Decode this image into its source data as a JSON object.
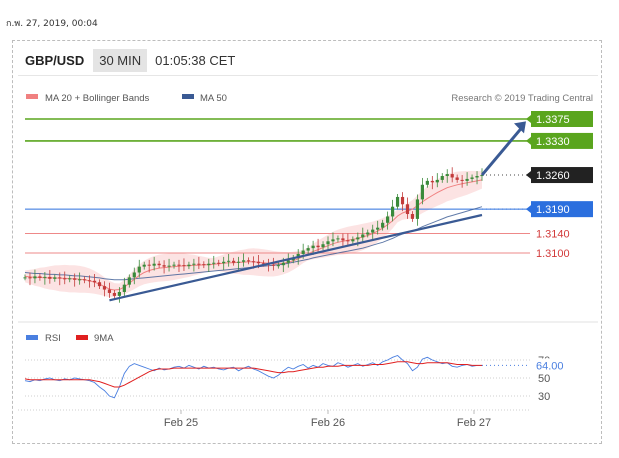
{
  "timestamp": "ก.พ. 27, 2019, 00:04",
  "header": {
    "symbol": "GBP/USD",
    "timeframe": "30 MIN",
    "clock": "01:05:38 CET"
  },
  "colors": {
    "ma20": "#f08080",
    "ma50": "#3a5a94",
    "green": "#5aa51e",
    "blue": "#2b6fde",
    "current": "#222222",
    "red": "#e06060",
    "rsi": "#4a7fe0",
    "ma9": "#e02020"
  },
  "chart_data": {
    "type": "candlestick",
    "legend": [
      {
        "name": "MA 20 + Bollinger Bands",
        "color": "#f08080"
      },
      {
        "name": "MA 50",
        "color": "#3a5a94"
      }
    ],
    "credit": "Research © 2019 Trading Central",
    "x_ticks": [
      "Feb 25",
      "Feb 26",
      "Feb 27"
    ],
    "levels": [
      {
        "value": 1.3375,
        "label": "1.3375",
        "kind": "resistance"
      },
      {
        "value": 1.333,
        "label": "1.3330",
        "kind": "resistance"
      },
      {
        "value": 1.326,
        "label": "1.3260",
        "kind": "current"
      },
      {
        "value": 1.319,
        "label": "1.3190",
        "kind": "pivot"
      },
      {
        "value": 1.314,
        "label": "1.3140",
        "kind": "support"
      },
      {
        "value": 1.31,
        "label": "1.3100",
        "kind": "support"
      }
    ],
    "closes": [
      1.305,
      1.3048,
      1.3052,
      1.3049,
      1.3051,
      1.3047,
      1.305,
      1.3048,
      1.3046,
      1.3048,
      1.3045,
      1.3046,
      1.3044,
      1.3043,
      1.304,
      1.3032,
      1.3025,
      1.3018,
      1.3012,
      1.302,
      1.3035,
      1.305,
      1.306,
      1.3072,
      1.3076,
      1.3074,
      1.3078,
      1.3075,
      1.3072,
      1.3074,
      1.3076,
      1.3075,
      1.3073,
      1.3076,
      1.3078,
      1.3077,
      1.3075,
      1.3078,
      1.308,
      1.3079,
      1.3082,
      1.3084,
      1.308,
      1.3082,
      1.3085,
      1.3083,
      1.3082,
      1.3079,
      1.3078,
      1.3076,
      1.3074,
      1.3075,
      1.308,
      1.3085,
      1.309,
      1.3098,
      1.3105,
      1.311,
      1.3115,
      1.3112,
      1.3118,
      1.3124,
      1.3128,
      1.313,
      1.3126,
      1.3124,
      1.3128,
      1.3132,
      1.3138,
      1.3142,
      1.3148,
      1.3152,
      1.3162,
      1.3175,
      1.3195,
      1.3215,
      1.32,
      1.318,
      1.317,
      1.321,
      1.324,
      1.3248,
      1.3245,
      1.325,
      1.3258,
      1.3262,
      1.3255,
      1.325,
      1.3248,
      1.3252,
      1.3255,
      1.3258,
      1.326
    ],
    "ma20": [
      1.3052,
      1.3051,
      1.305,
      1.305,
      1.3049,
      1.3049,
      1.3049,
      1.3048,
      1.3048,
      1.3047,
      1.3047,
      1.3046,
      1.3045,
      1.3043,
      1.304,
      1.3036,
      1.3031,
      1.3026,
      1.3024,
      1.3025,
      1.303,
      1.3038,
      1.3046,
      1.3054,
      1.306,
      1.3064,
      1.3067,
      1.3069,
      1.307,
      1.3071,
      1.3072,
      1.3073,
      1.3074,
      1.3074,
      1.3075,
      1.3075,
      1.3076,
      1.3076,
      1.3077,
      1.3078,
      1.3079,
      1.308,
      1.308,
      1.3081,
      1.3081,
      1.3082,
      1.3082,
      1.3081,
      1.308,
      1.3079,
      1.3078,
      1.3078,
      1.3079,
      1.3081,
      1.3084,
      1.3088,
      1.3093,
      1.3098,
      1.3103,
      1.3107,
      1.3111,
      1.3115,
      1.3119,
      1.3122,
      1.3124,
      1.3126,
      1.3128,
      1.313,
      1.3133,
      1.3136,
      1.314,
      1.3145,
      1.3151,
      1.3158,
      1.3166,
      1.3176,
      1.3182,
      1.3186,
      1.319,
      1.3197,
      1.3205,
      1.3212,
      1.3218,
      1.3224,
      1.3229,
      1.3234,
      1.3237,
      1.324,
      1.3242,
      1.3244,
      1.3246,
      1.3248,
      1.325
    ],
    "ma50": [
      1.306,
      1.3059,
      1.3058,
      1.3058,
      1.3057,
      1.3056,
      1.3056,
      1.3055,
      1.3055,
      1.3054,
      1.3053,
      1.3053,
      1.3052,
      1.3051,
      1.305,
      1.3049,
      1.3047,
      1.3046,
      1.3045,
      1.3045,
      1.3045,
      1.3046,
      1.3047,
      1.3048,
      1.3049,
      1.305,
      1.3051,
      1.3052,
      1.3053,
      1.3054,
      1.3055,
      1.3056,
      1.3057,
      1.3058,
      1.3059,
      1.306,
      1.3061,
      1.3062,
      1.3063,
      1.3064,
      1.3065,
      1.3066,
      1.3067,
      1.3068,
      1.3069,
      1.307,
      1.3071,
      1.3072,
      1.3073,
      1.3074,
      1.3075,
      1.3076,
      1.3077,
      1.3079,
      1.3081,
      1.3083,
      1.3085,
      1.3087,
      1.309,
      1.3092,
      1.3094,
      1.3096,
      1.3098,
      1.31,
      1.3102,
      1.3104,
      1.3106,
      1.3108,
      1.311,
      1.3113,
      1.3116,
      1.3119,
      1.3122,
      1.3126,
      1.313,
      1.3135,
      1.3139,
      1.3142,
      1.3145,
      1.3149,
      1.3154,
      1.3158,
      1.3162,
      1.3166,
      1.317,
      1.3174,
      1.3177,
      1.318,
      1.3183,
      1.3186,
      1.3189,
      1.3192,
      1.3195
    ],
    "trendline": {
      "from": 1.3003,
      "to": 1.3178
    },
    "arrow": {
      "from": 1.326,
      "to": 1.337
    },
    "rsi_panel": {
      "legend": [
        {
          "name": "RSI",
          "color": "#4a7fe0"
        },
        {
          "name": "9MA",
          "color": "#e02020"
        }
      ],
      "ticks": [
        "70",
        "50",
        "30"
      ],
      "ylim": [
        20,
        80
      ],
      "last_value": 64.0,
      "last_label": "64.00",
      "rsi": [
        47,
        46,
        48,
        47,
        49,
        50,
        48,
        47,
        49,
        48,
        50,
        49,
        48,
        47,
        45,
        40,
        36,
        30,
        28,
        40,
        55,
        63,
        66,
        64,
        62,
        60,
        58,
        61,
        59,
        60,
        62,
        63,
        61,
        64,
        62,
        60,
        63,
        61,
        62,
        60,
        59,
        61,
        62,
        58,
        61,
        63,
        60,
        58,
        55,
        52,
        50,
        53,
        58,
        62,
        60,
        63,
        65,
        61,
        64,
        62,
        66,
        64,
        63,
        67,
        65,
        62,
        64,
        66,
        63,
        65,
        67,
        64,
        68,
        70,
        73,
        75,
        70,
        66,
        58,
        62,
        71,
        73,
        70,
        68,
        66,
        67,
        63,
        62,
        64,
        65,
        63,
        64,
        64
      ],
      "ma9": [
        49,
        48,
        48,
        48,
        48,
        48,
        48,
        48,
        48,
        48,
        48,
        48,
        48,
        48,
        47,
        46,
        44,
        42,
        40,
        40,
        42,
        45,
        48,
        51,
        54,
        57,
        59,
        60,
        60,
        60,
        61,
        61,
        61,
        61,
        61,
        61,
        61,
        61,
        61,
        61,
        61,
        61,
        61,
        61,
        61,
        61,
        61,
        60,
        59,
        58,
        57,
        56,
        56,
        57,
        57,
        58,
        59,
        60,
        61,
        62,
        62,
        63,
        63,
        63,
        64,
        64,
        64,
        64,
        64,
        64,
        65,
        65,
        65,
        66,
        67,
        68,
        68,
        68,
        67,
        66,
        66,
        67,
        67,
        67,
        67,
        67,
        66,
        65,
        65,
        65,
        64,
        64,
        64
      ]
    }
  }
}
